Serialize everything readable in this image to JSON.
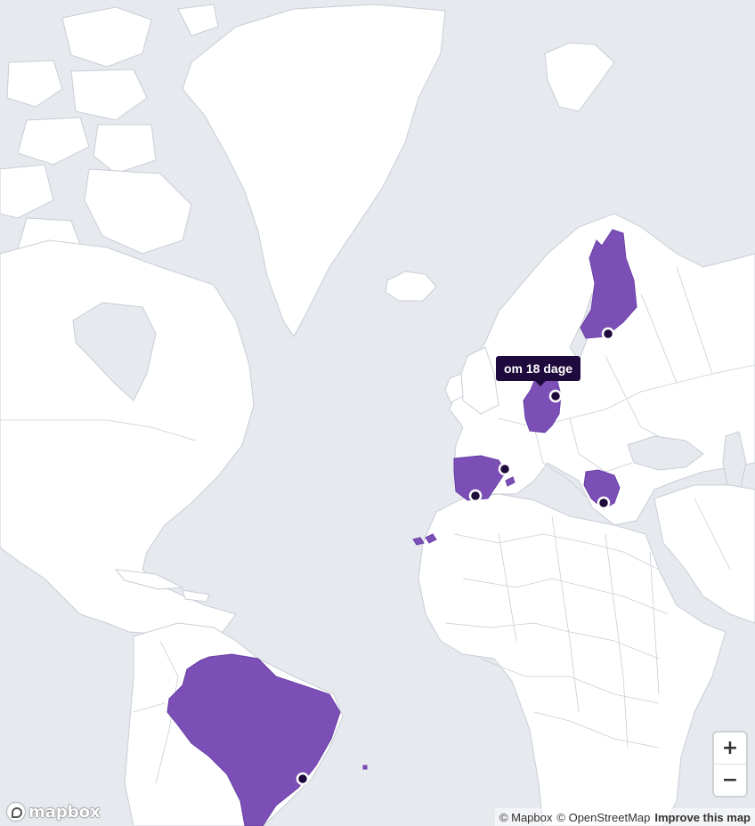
{
  "map": {
    "tooltip": "om 18 dage",
    "highlight_color": "#7b4fb5",
    "pin_color": "#1e0a3c",
    "land_color": "#ffffff",
    "water_color": "#e6e9ed",
    "highlighted_countries": [
      "Finland",
      "Germany",
      "Spain",
      "Greece",
      "Brazil",
      "Canary Islands"
    ],
    "markers": [
      "Helsinki",
      "Berlin",
      "Barcelona",
      "Malaga",
      "Athens",
      "Rio de Janeiro"
    ]
  },
  "zoom": {
    "in_label": "+",
    "out_label": "−"
  },
  "logo": {
    "text": "mapbox",
    "icon": "mapbox-logo-icon"
  },
  "attribution": {
    "mapbox": "© Mapbox",
    "osm": "© OpenStreetMap",
    "improve": "Improve this map"
  }
}
